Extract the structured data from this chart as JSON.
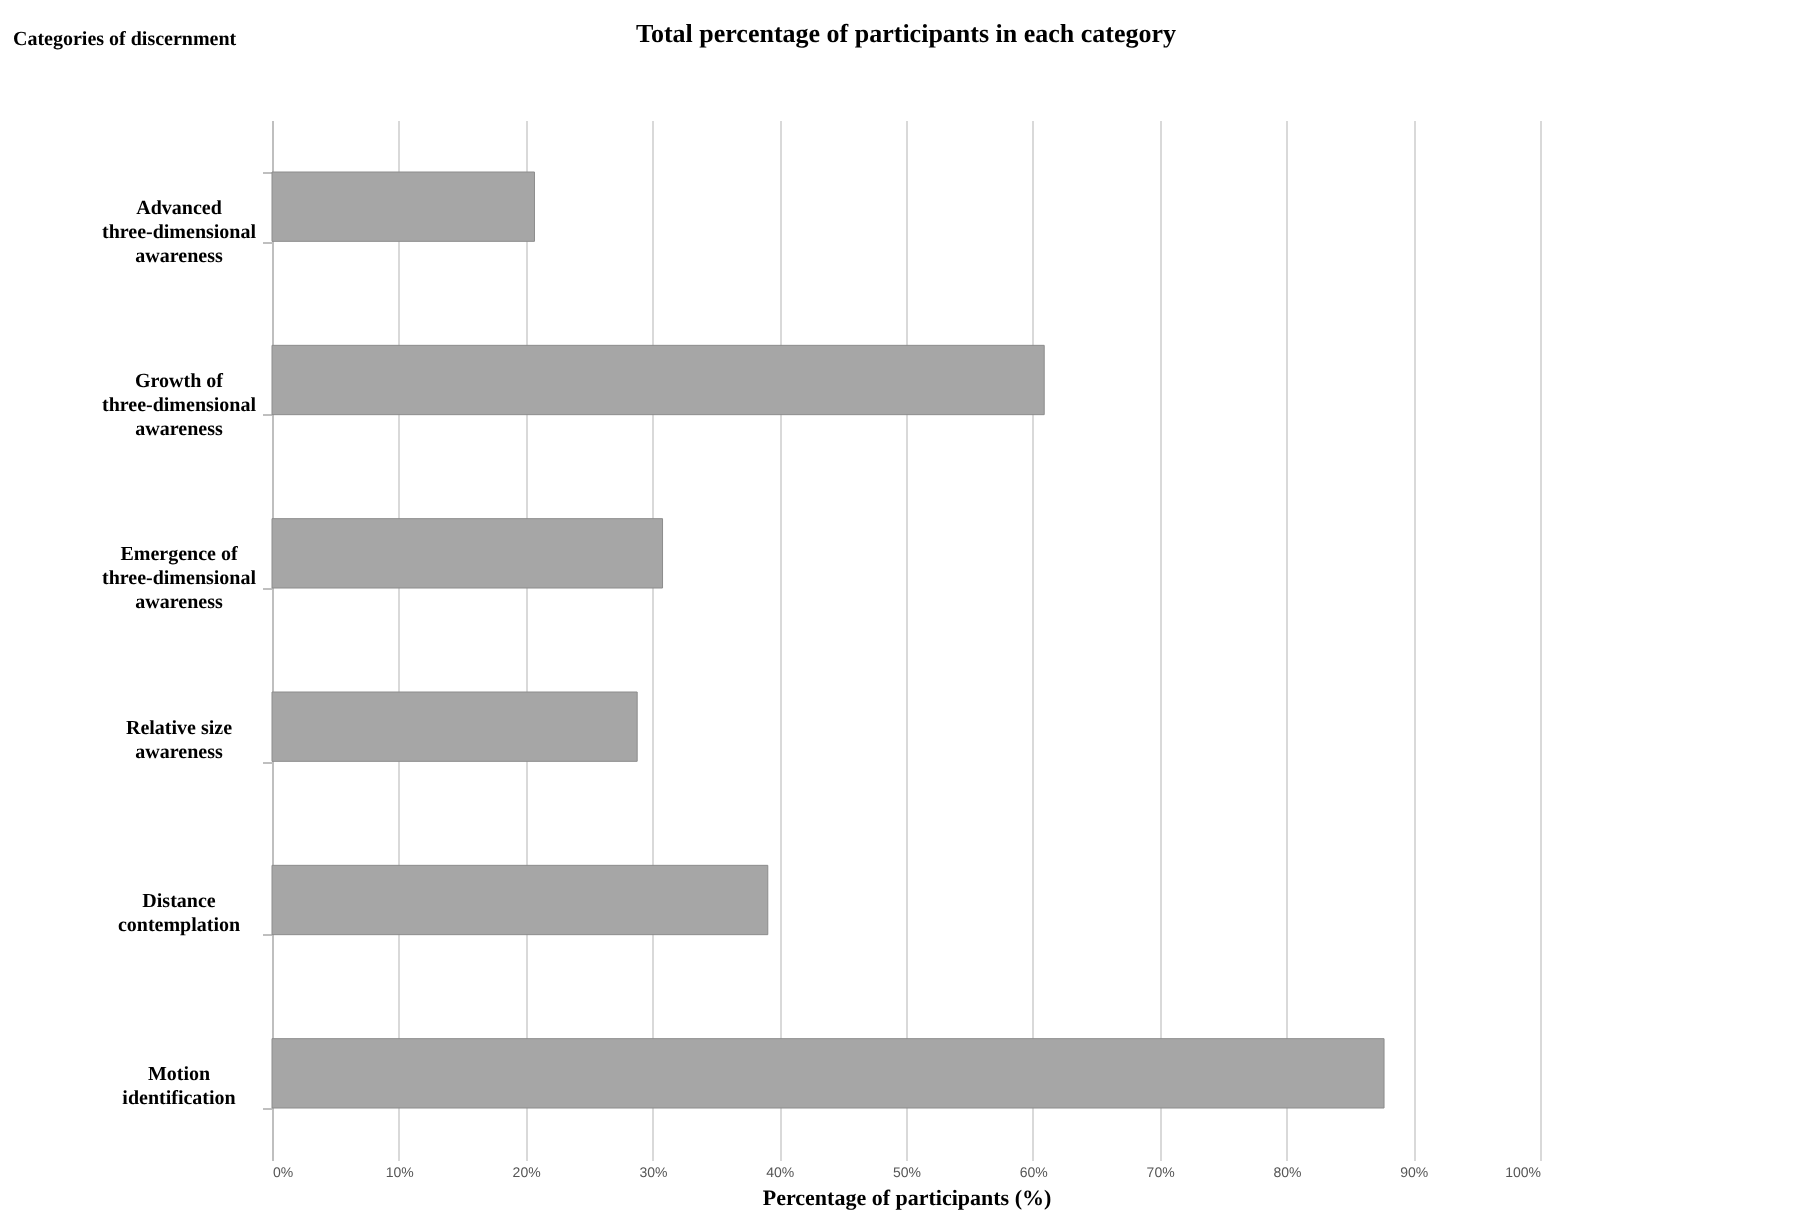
{
  "chart_data": {
    "type": "bar",
    "orientation": "horizontal",
    "title": "Total percentage of participants in each category",
    "ylabel": "Categories of discernment",
    "xlabel": "Percentage of participants (%)",
    "categories": [
      "Advanced three-dimensional awareness",
      "Growth of three-dimensional awareness",
      "Emergence of three-dimensional awareness",
      "Relative size awareness",
      "Distance contemplation",
      "Motion identification"
    ],
    "values": [
      20.7,
      60.9,
      30.8,
      28.8,
      39.1,
      87.7
    ],
    "color": "#a6a6a6",
    "xlim": [
      0,
      100
    ],
    "xticks": [
      {
        "value": 0,
        "label": "0%"
      },
      {
        "value": 10,
        "label": "10%"
      },
      {
        "value": 20,
        "label": "20%"
      },
      {
        "value": 30,
        "label": "30%"
      },
      {
        "value": 40,
        "label": "40%"
      },
      {
        "value": 50,
        "label": "50%"
      },
      {
        "value": 60,
        "label": "60%"
      },
      {
        "value": 70,
        "label": "70%"
      },
      {
        "value": 80,
        "label": "80%"
      },
      {
        "value": 90,
        "label": "90%"
      },
      {
        "value": 100,
        "label": "100%"
      }
    ],
    "grid": "x"
  }
}
